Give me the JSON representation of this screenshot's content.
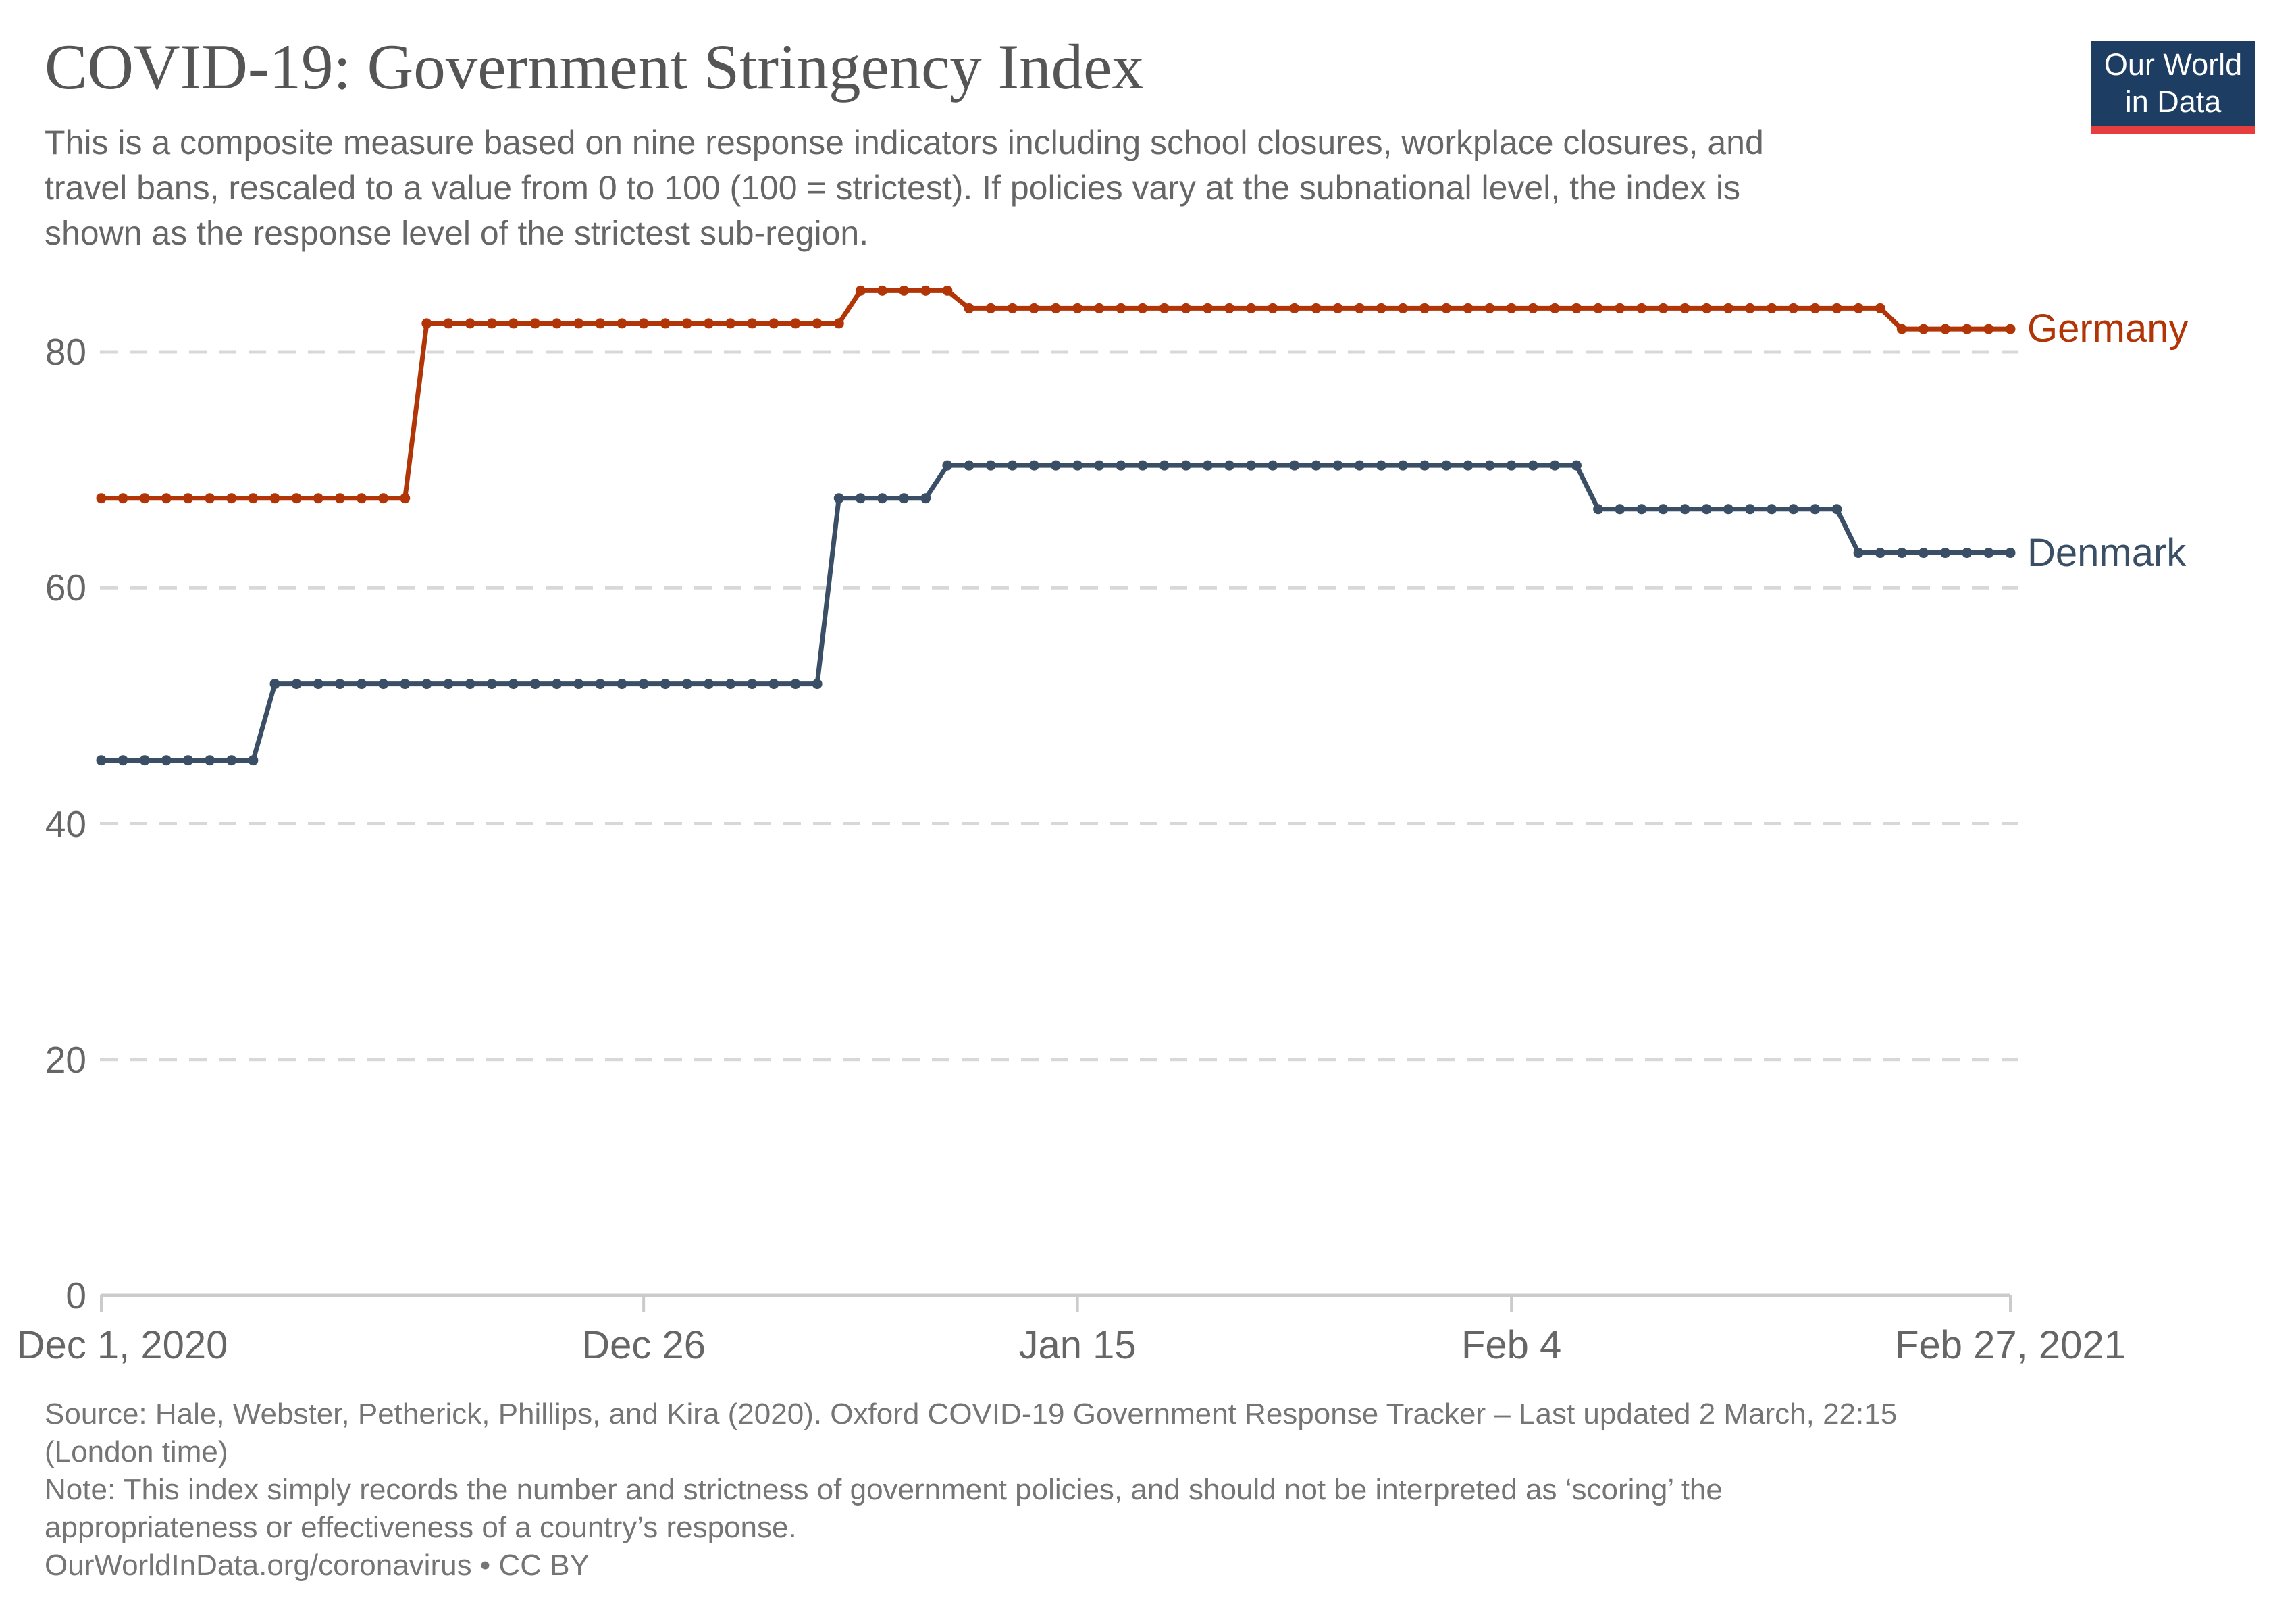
{
  "header": {
    "title": "COVID-19: Government Stringency Index",
    "subtitle_lines": [
      "This is a composite measure based on nine response indicators including school closures, workplace closures, and",
      "travel bans, rescaled to a value from 0 to 100 (100 = strictest). If policies vary at the subnational level, the index is",
      "shown as the response level of the strictest sub-region."
    ]
  },
  "logo": {
    "line1": "Our World",
    "line2": "in Data",
    "bg_color": "#1d3d63",
    "bar_color": "#e63e3e"
  },
  "chart_data": {
    "type": "line",
    "title": "COVID-19: Government Stringency Index",
    "grid": true,
    "marker": "circle-daily",
    "legend_position": "line-end-labels",
    "x_axis": {
      "unit": "day",
      "start_date": "2020-12-01",
      "end_date": "2021-02-27",
      "total_days": 88,
      "ticks": [
        {
          "label": "Dec 1, 2020",
          "day": 0
        },
        {
          "label": "Dec 26",
          "day": 25
        },
        {
          "label": "Jan 15",
          "day": 45
        },
        {
          "label": "Feb 4",
          "day": 65
        },
        {
          "label": "Feb 27, 2021",
          "day": 88
        }
      ]
    },
    "y_axis": {
      "min": 0,
      "max": 100,
      "shown_max": 86,
      "ticks": [
        0,
        20,
        40,
        60,
        80
      ]
    },
    "series": [
      {
        "name": "Germany",
        "color": "#b13507",
        "segments": [
          {
            "from": "2020-12-01",
            "to": "2020-12-15",
            "start_day": 0,
            "end_day": 14,
            "value": 67.59
          },
          {
            "from": "2020-12-16",
            "to": "2021-01-04",
            "start_day": 15,
            "end_day": 34,
            "value": 82.41
          },
          {
            "from": "2021-01-05",
            "to": "2021-01-09",
            "start_day": 35,
            "end_day": 39,
            "value": 85.19
          },
          {
            "from": "2021-01-10",
            "to": "2021-02-21",
            "start_day": 40,
            "end_day": 82,
            "value": 83.7
          },
          {
            "from": "2021-02-22",
            "to": "2021-02-27",
            "start_day": 83,
            "end_day": 88,
            "value": 81.94
          }
        ]
      },
      {
        "name": "Denmark",
        "color": "#3a4f66",
        "segments": [
          {
            "from": "2020-12-01",
            "to": "2020-12-08",
            "start_day": 0,
            "end_day": 7,
            "value": 45.37
          },
          {
            "from": "2020-12-09",
            "to": "2021-01-03",
            "start_day": 8,
            "end_day": 33,
            "value": 51.85
          },
          {
            "from": "2021-01-04",
            "to": "2021-01-08",
            "start_day": 34,
            "end_day": 38,
            "value": 67.59
          },
          {
            "from": "2021-01-09",
            "to": "2021-02-07",
            "start_day": 39,
            "end_day": 68,
            "value": 70.37
          },
          {
            "from": "2021-02-08",
            "to": "2021-02-19",
            "start_day": 69,
            "end_day": 80,
            "value": 66.67
          },
          {
            "from": "2021-02-20",
            "to": "2021-02-27",
            "start_day": 81,
            "end_day": 88,
            "value": 62.96
          }
        ]
      }
    ]
  },
  "footer": {
    "lines": [
      "Source: Hale, Webster, Petherick, Phillips, and Kira (2020). Oxford COVID-19 Government Response Tracker – Last updated 2 March, 22:15",
      "(London time)",
      "Note: This index simply records the number and strictness of government policies, and should not be interpreted as ‘scoring’ the",
      "appropriateness or effectiveness of a country’s response.",
      "OurWorldInData.org/coronavirus • CC BY"
    ]
  }
}
